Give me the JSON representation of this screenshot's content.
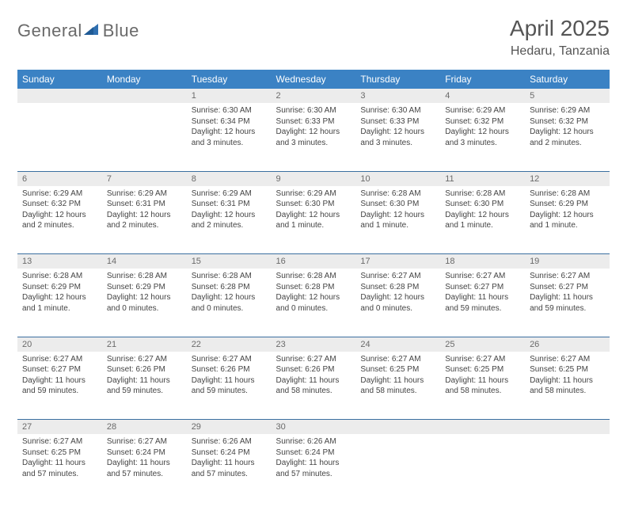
{
  "brand": {
    "name_part1": "General",
    "name_part2": "Blue"
  },
  "title": "April 2025",
  "location": "Hedaru, Tanzania",
  "colors": {
    "header_bg": "#3b82c4",
    "header_text": "#ffffff",
    "daynum_bg": "#ececec",
    "daynum_text": "#6a6a6a",
    "row_divider": "#3b6fa0",
    "body_text": "#444444",
    "title_text": "#555555",
    "logo_text": "#6a6a6a",
    "logo_icon": "#2f6fb0",
    "background": "#ffffff"
  },
  "fonts": {
    "family": "Arial",
    "title_size_pt": 21,
    "location_size_pt": 12,
    "dayheader_size_pt": 9,
    "cell_size_pt": 7.5
  },
  "weekdays": [
    "Sunday",
    "Monday",
    "Tuesday",
    "Wednesday",
    "Thursday",
    "Friday",
    "Saturday"
  ],
  "weeks": [
    [
      null,
      null,
      {
        "n": "1",
        "sr": "Sunrise: 6:30 AM",
        "ss": "Sunset: 6:34 PM",
        "dl": "Daylight: 12 hours and 3 minutes."
      },
      {
        "n": "2",
        "sr": "Sunrise: 6:30 AM",
        "ss": "Sunset: 6:33 PM",
        "dl": "Daylight: 12 hours and 3 minutes."
      },
      {
        "n": "3",
        "sr": "Sunrise: 6:30 AM",
        "ss": "Sunset: 6:33 PM",
        "dl": "Daylight: 12 hours and 3 minutes."
      },
      {
        "n": "4",
        "sr": "Sunrise: 6:29 AM",
        "ss": "Sunset: 6:32 PM",
        "dl": "Daylight: 12 hours and 3 minutes."
      },
      {
        "n": "5",
        "sr": "Sunrise: 6:29 AM",
        "ss": "Sunset: 6:32 PM",
        "dl": "Daylight: 12 hours and 2 minutes."
      }
    ],
    [
      {
        "n": "6",
        "sr": "Sunrise: 6:29 AM",
        "ss": "Sunset: 6:32 PM",
        "dl": "Daylight: 12 hours and 2 minutes."
      },
      {
        "n": "7",
        "sr": "Sunrise: 6:29 AM",
        "ss": "Sunset: 6:31 PM",
        "dl": "Daylight: 12 hours and 2 minutes."
      },
      {
        "n": "8",
        "sr": "Sunrise: 6:29 AM",
        "ss": "Sunset: 6:31 PM",
        "dl": "Daylight: 12 hours and 2 minutes."
      },
      {
        "n": "9",
        "sr": "Sunrise: 6:29 AM",
        "ss": "Sunset: 6:30 PM",
        "dl": "Daylight: 12 hours and 1 minute."
      },
      {
        "n": "10",
        "sr": "Sunrise: 6:28 AM",
        "ss": "Sunset: 6:30 PM",
        "dl": "Daylight: 12 hours and 1 minute."
      },
      {
        "n": "11",
        "sr": "Sunrise: 6:28 AM",
        "ss": "Sunset: 6:30 PM",
        "dl": "Daylight: 12 hours and 1 minute."
      },
      {
        "n": "12",
        "sr": "Sunrise: 6:28 AM",
        "ss": "Sunset: 6:29 PM",
        "dl": "Daylight: 12 hours and 1 minute."
      }
    ],
    [
      {
        "n": "13",
        "sr": "Sunrise: 6:28 AM",
        "ss": "Sunset: 6:29 PM",
        "dl": "Daylight: 12 hours and 1 minute."
      },
      {
        "n": "14",
        "sr": "Sunrise: 6:28 AM",
        "ss": "Sunset: 6:29 PM",
        "dl": "Daylight: 12 hours and 0 minutes."
      },
      {
        "n": "15",
        "sr": "Sunrise: 6:28 AM",
        "ss": "Sunset: 6:28 PM",
        "dl": "Daylight: 12 hours and 0 minutes."
      },
      {
        "n": "16",
        "sr": "Sunrise: 6:28 AM",
        "ss": "Sunset: 6:28 PM",
        "dl": "Daylight: 12 hours and 0 minutes."
      },
      {
        "n": "17",
        "sr": "Sunrise: 6:27 AM",
        "ss": "Sunset: 6:28 PM",
        "dl": "Daylight: 12 hours and 0 minutes."
      },
      {
        "n": "18",
        "sr": "Sunrise: 6:27 AM",
        "ss": "Sunset: 6:27 PM",
        "dl": "Daylight: 11 hours and 59 minutes."
      },
      {
        "n": "19",
        "sr": "Sunrise: 6:27 AM",
        "ss": "Sunset: 6:27 PM",
        "dl": "Daylight: 11 hours and 59 minutes."
      }
    ],
    [
      {
        "n": "20",
        "sr": "Sunrise: 6:27 AM",
        "ss": "Sunset: 6:27 PM",
        "dl": "Daylight: 11 hours and 59 minutes."
      },
      {
        "n": "21",
        "sr": "Sunrise: 6:27 AM",
        "ss": "Sunset: 6:26 PM",
        "dl": "Daylight: 11 hours and 59 minutes."
      },
      {
        "n": "22",
        "sr": "Sunrise: 6:27 AM",
        "ss": "Sunset: 6:26 PM",
        "dl": "Daylight: 11 hours and 59 minutes."
      },
      {
        "n": "23",
        "sr": "Sunrise: 6:27 AM",
        "ss": "Sunset: 6:26 PM",
        "dl": "Daylight: 11 hours and 58 minutes."
      },
      {
        "n": "24",
        "sr": "Sunrise: 6:27 AM",
        "ss": "Sunset: 6:25 PM",
        "dl": "Daylight: 11 hours and 58 minutes."
      },
      {
        "n": "25",
        "sr": "Sunrise: 6:27 AM",
        "ss": "Sunset: 6:25 PM",
        "dl": "Daylight: 11 hours and 58 minutes."
      },
      {
        "n": "26",
        "sr": "Sunrise: 6:27 AM",
        "ss": "Sunset: 6:25 PM",
        "dl": "Daylight: 11 hours and 58 minutes."
      }
    ],
    [
      {
        "n": "27",
        "sr": "Sunrise: 6:27 AM",
        "ss": "Sunset: 6:25 PM",
        "dl": "Daylight: 11 hours and 57 minutes."
      },
      {
        "n": "28",
        "sr": "Sunrise: 6:27 AM",
        "ss": "Sunset: 6:24 PM",
        "dl": "Daylight: 11 hours and 57 minutes."
      },
      {
        "n": "29",
        "sr": "Sunrise: 6:26 AM",
        "ss": "Sunset: 6:24 PM",
        "dl": "Daylight: 11 hours and 57 minutes."
      },
      {
        "n": "30",
        "sr": "Sunrise: 6:26 AM",
        "ss": "Sunset: 6:24 PM",
        "dl": "Daylight: 11 hours and 57 minutes."
      },
      null,
      null,
      null
    ]
  ]
}
